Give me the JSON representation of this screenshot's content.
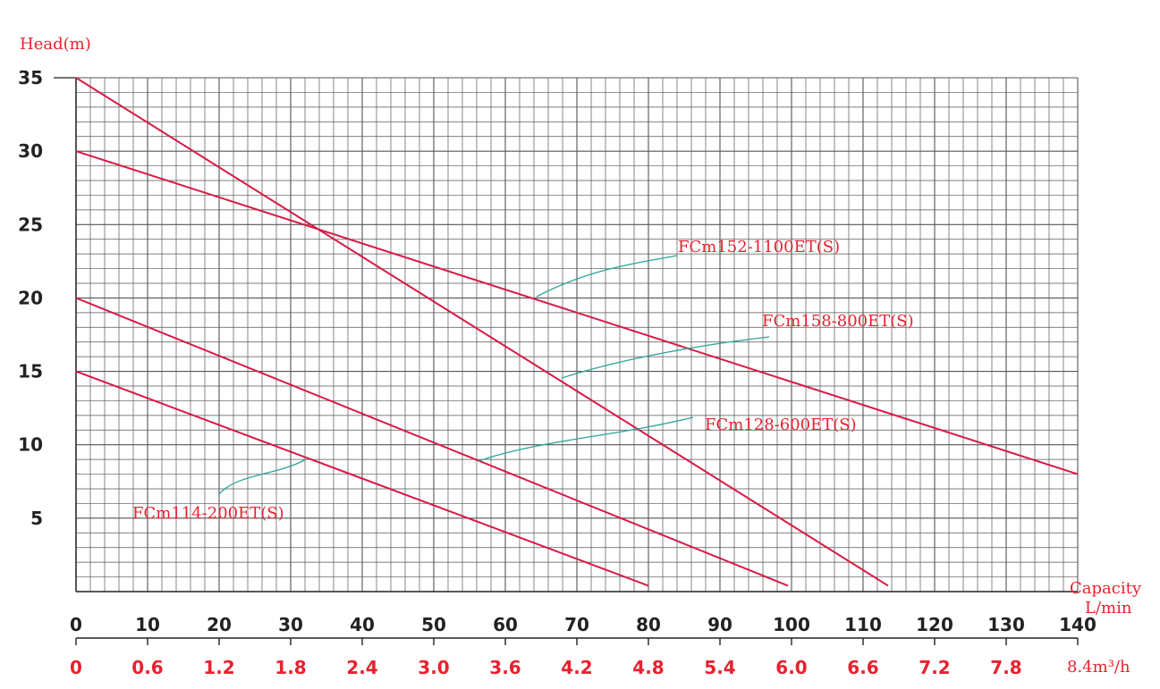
{
  "chart_data": {
    "type": "line",
    "ylabel": "Head(m)",
    "xlabel": "Capacity",
    "xlabel_unit": "L/min",
    "x2label_unit": "8.4m³/h",
    "xlim": [
      0,
      140
    ],
    "ylim": [
      0,
      35
    ],
    "grid": true,
    "y_ticks": [
      "5",
      "10",
      "15",
      "20",
      "25",
      "30",
      "35"
    ],
    "x_ticks": [
      "0",
      "10",
      "20",
      "30",
      "40",
      "50",
      "60",
      "70",
      "80",
      "90",
      "100",
      "110",
      "120",
      "130",
      "140"
    ],
    "x2_ticks": [
      "0",
      "0.6",
      "1.2",
      "1.8",
      "2.4",
      "3.0",
      "3.6",
      "4.2",
      "4.8",
      "5.4",
      "6.0",
      "6.6",
      "7.2",
      "7.8"
    ],
    "colors": {
      "curve": "#d81a44",
      "leader": "#2aa59a",
      "grid": "#555555",
      "label": "#e8222f"
    },
    "series": [
      {
        "name": "FCm114-200ET(S)",
        "x": [
          0,
          80
        ],
        "y": [
          15,
          0.4
        ],
        "label_anchor": [
          32.5,
          9.0
        ]
      },
      {
        "name": "FCm128-600ET(S)",
        "x": [
          0,
          99.5
        ],
        "y": [
          20,
          0.4
        ],
        "label_anchor": [
          56,
          8.8
        ]
      },
      {
        "name": "FCm158-800ET(S)",
        "x": [
          0,
          113.5
        ],
        "y": [
          35,
          0.4
        ],
        "label_anchor": [
          68,
          14.5
        ]
      },
      {
        "name": "FCm152-1100ET(S)",
        "x": [
          0,
          140
        ],
        "y": [
          30,
          8
        ],
        "label_anchor": [
          64,
          20
        ]
      }
    ]
  }
}
